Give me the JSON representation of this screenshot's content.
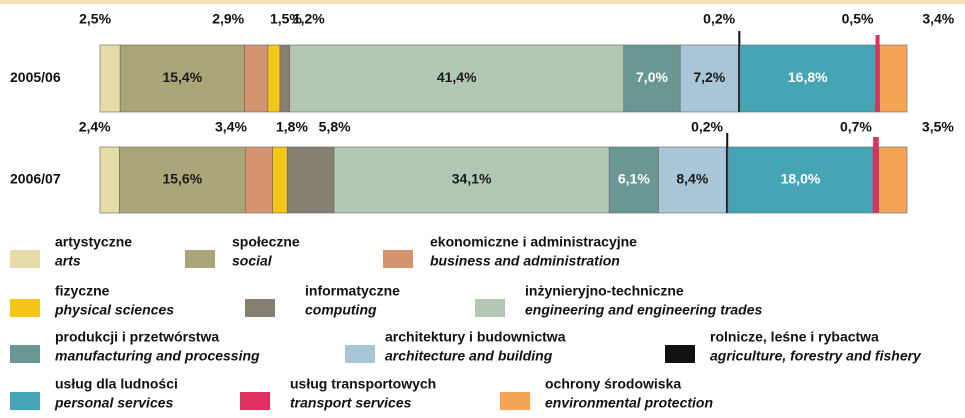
{
  "chart_data": {
    "type": "bar",
    "orientation": "horizontal",
    "stacked": true,
    "categories": [
      "2005/06",
      "2006/07"
    ],
    "series": [
      {
        "name": "artystyczne",
        "name_en": "arts",
        "color": "#e6dca8",
        "values": [
          2.5,
          2.4
        ],
        "value_labels": [
          "2,5%",
          "2,4%"
        ]
      },
      {
        "name": "społeczne",
        "name_en": "social",
        "color": "#aaa67a",
        "values": [
          15.4,
          15.6
        ],
        "value_labels": [
          "15,4%",
          "15,6%"
        ]
      },
      {
        "name": "ekonomiczne i administracyjne",
        "name_en": "business and administration",
        "color": "#d49470",
        "values": [
          2.9,
          3.4
        ],
        "value_labels": [
          "2,9%",
          "3,4%"
        ]
      },
      {
        "name": "fizyczne",
        "name_en": "physical sciences",
        "color": "#f5c518",
        "values": [
          1.5,
          1.8
        ],
        "value_labels": [
          "1,5%",
          "1,8%"
        ]
      },
      {
        "name": "informatyczne",
        "name_en": "computing",
        "color": "#858070",
        "values": [
          1.2,
          5.8
        ],
        "value_labels": [
          "1,2%",
          "5,8%"
        ]
      },
      {
        "name": "inżynieryjno-techniczne",
        "name_en": "engineering and engineering trades",
        "color": "#b3c8b4",
        "values": [
          41.4,
          34.1
        ],
        "value_labels": [
          "41,4%",
          "34,1%"
        ]
      },
      {
        "name": "produkcji i przetwórstwa",
        "name_en": "manufacturing and processing",
        "color": "#6a9694",
        "values": [
          7.0,
          6.1
        ],
        "value_labels": [
          "7,0%",
          "6,1%"
        ]
      },
      {
        "name": "architektury i budownictwa",
        "name_en": "architecture and building",
        "color": "#a9c6d8",
        "values": [
          7.2,
          8.4
        ],
        "value_labels": [
          "7,2%",
          "8,4%"
        ]
      },
      {
        "name": "rolnicze, leśne i rybactwa",
        "name_en": "agriculture, forestry and fishery",
        "color": "#111111",
        "values": [
          0.2,
          0.2
        ],
        "value_labels": [
          "0,2%",
          "0,2%"
        ]
      },
      {
        "name": "usług dla ludności",
        "name_en": "personal services",
        "color": "#45a5b5",
        "values": [
          16.8,
          18.0
        ],
        "value_labels": [
          "16,8%",
          "18,0%"
        ]
      },
      {
        "name": "usług transportowych",
        "name_en": "transport services",
        "color": "#e03060",
        "values": [
          0.5,
          0.7
        ],
        "value_labels": [
          "0,5%",
          "0,7%"
        ]
      },
      {
        "name": "ochrony środowiska",
        "name_en": "environmental protection",
        "color": "#f6a555",
        "values": [
          3.4,
          3.5
        ],
        "value_labels": [
          "3,4%",
          "3,5%"
        ]
      }
    ]
  }
}
